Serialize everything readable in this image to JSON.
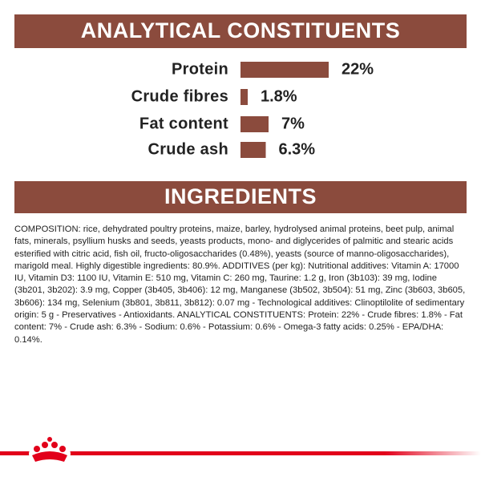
{
  "chart_data": {
    "type": "bar",
    "orientation": "horizontal",
    "title": "ANALYTICAL CONSTITUENTS",
    "categories": [
      "Protein",
      "Crude fibres",
      "Fat content",
      "Crude ash"
    ],
    "values": [
      22,
      1.8,
      7,
      6.3
    ],
    "value_labels": [
      "22%",
      "1.8%",
      "7%",
      "6.3%"
    ],
    "color": "#8b4b3d"
  },
  "ingredients": {
    "title": "INGREDIENTS",
    "text": "COMPOSITION: rice, dehydrated poultry proteins, maize, barley, hydrolysed animal proteins, beet pulp, animal fats, minerals, psyllium husks and seeds, yeasts products, mono- and diglycerides of palmitic and stearic acids esterified with citric acid, fish oil, fructo-oligosaccharides (0.48%), yeasts (source of manno-oligosaccharides), marigold meal. Highly digestible ingredients: 80.9%. ADDITIVES (per kg): Nutritional additives: Vitamin A: 17000 IU, Vitamin D3: 1100 IU, Vitamin E: 510 mg, Vitamin C: 260 mg, Taurine: 1.2 g, Iron (3b103): 39 mg, Iodine (3b201, 3b202): 3.9 mg, Copper (3b405, 3b406): 12 mg, Manganese (3b502, 3b504): 51 mg, Zinc (3b603, 3b605, 3b606): 134 mg, Selenium (3b801, 3b811, 3b812): 0.07 mg - Technological additives: Clinoptilolite of sedimentary origin: 5 g - Preservatives - Antioxidants. ANALYTICAL CONSTITUENTS: Protein: 22% - Crude fibres: 1.8% - Fat content: 7% - Crude ash: 6.3% - Sodium: 0.6% - Potassium: 0.6% - Omega-3 fatty acids: 0.25% - EPA/DHA: 0.14%."
  }
}
